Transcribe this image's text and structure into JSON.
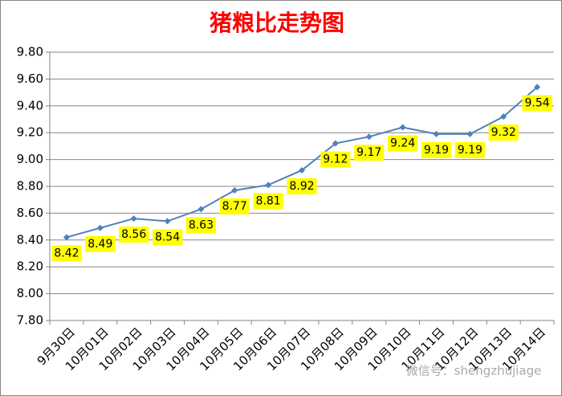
{
  "chart_data": {
    "type": "line",
    "title": "猪粮比走势图",
    "categories": [
      "9月30日",
      "10月01日",
      "10月02日",
      "10月03日",
      "10月04日",
      "10月05日",
      "10月06日",
      "10月07日",
      "10月08日",
      "10月09日",
      "10月10日",
      "10月11日",
      "10月12日",
      "10月13日",
      "10月14日"
    ],
    "values": [
      8.42,
      8.49,
      8.56,
      8.54,
      8.63,
      8.77,
      8.81,
      8.92,
      9.12,
      9.17,
      9.24,
      9.19,
      9.19,
      9.32,
      9.54
    ],
    "color": "#4f81bd",
    "label_background": "#ffff00",
    "ylim": [
      7.8,
      9.8
    ],
    "yticks": [
      {
        "value": 7.8,
        "label": "7.80"
      },
      {
        "value": 8.0,
        "label": "8.00"
      },
      {
        "value": 8.2,
        "label": "8.20"
      },
      {
        "value": 8.4,
        "label": "8.40"
      },
      {
        "value": 8.6,
        "label": "8.60"
      },
      {
        "value": 8.8,
        "label": "8.80"
      },
      {
        "value": 9.0,
        "label": "9.00"
      },
      {
        "value": 9.2,
        "label": "9.20"
      },
      {
        "value": 9.4,
        "label": "9.40"
      },
      {
        "value": 9.6,
        "label": "9.60"
      },
      {
        "value": 9.8,
        "label": "9.80"
      }
    ],
    "grid": true,
    "watermark": "微信号：shengzhujiage"
  }
}
